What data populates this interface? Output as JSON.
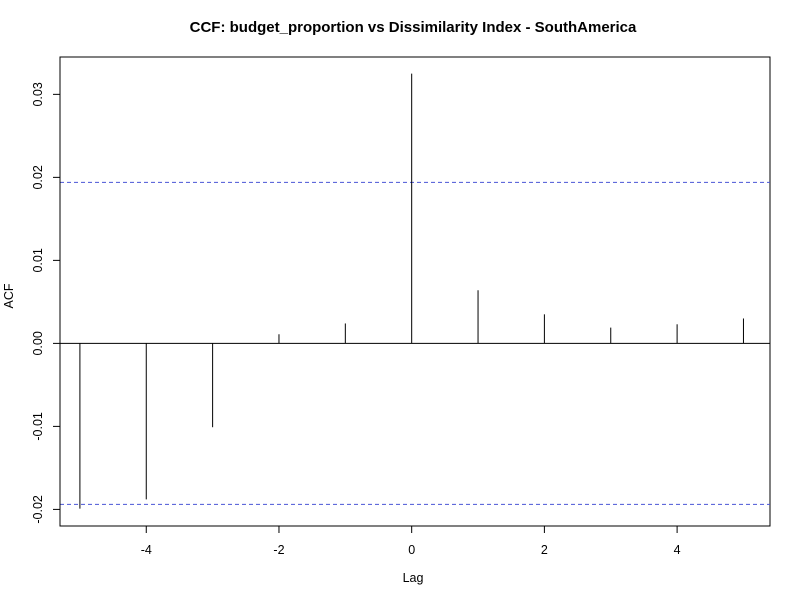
{
  "chart_data": {
    "type": "bar",
    "title": "CCF: budget_proportion vs Dissimilarity Index - SouthAmerica",
    "xlabel": "Lag",
    "ylabel": "ACF",
    "xlim": [
      -5.3,
      5.4
    ],
    "ylim": [
      -0.022,
      0.0345
    ],
    "x_ticks": [
      -4,
      -2,
      0,
      2,
      4
    ],
    "x_tick_labels": [
      "-4",
      "-2",
      "0",
      "2",
      "4"
    ],
    "y_ticks": [
      -0.02,
      -0.01,
      0.0,
      0.01,
      0.02,
      0.03
    ],
    "y_tick_labels": [
      "-0.02",
      "-0.01",
      "0.00",
      "0.01",
      "0.02",
      "0.03"
    ],
    "lags": [
      -5,
      -4,
      -3,
      -2,
      -1,
      0,
      1,
      2,
      3,
      4,
      5
    ],
    "values": [
      -0.0199,
      -0.0188,
      -0.0101,
      0.0011,
      0.0024,
      0.0325,
      0.0064,
      0.0035,
      0.0019,
      0.0023,
      0.003
    ],
    "confidence_bound": 0.0194,
    "zero_line": true,
    "grid": false,
    "legend": "none",
    "colors": {
      "bars": "#000000",
      "confidence_lines": "#4a55d6",
      "frame": "#000000",
      "background": "#ffffff"
    }
  }
}
